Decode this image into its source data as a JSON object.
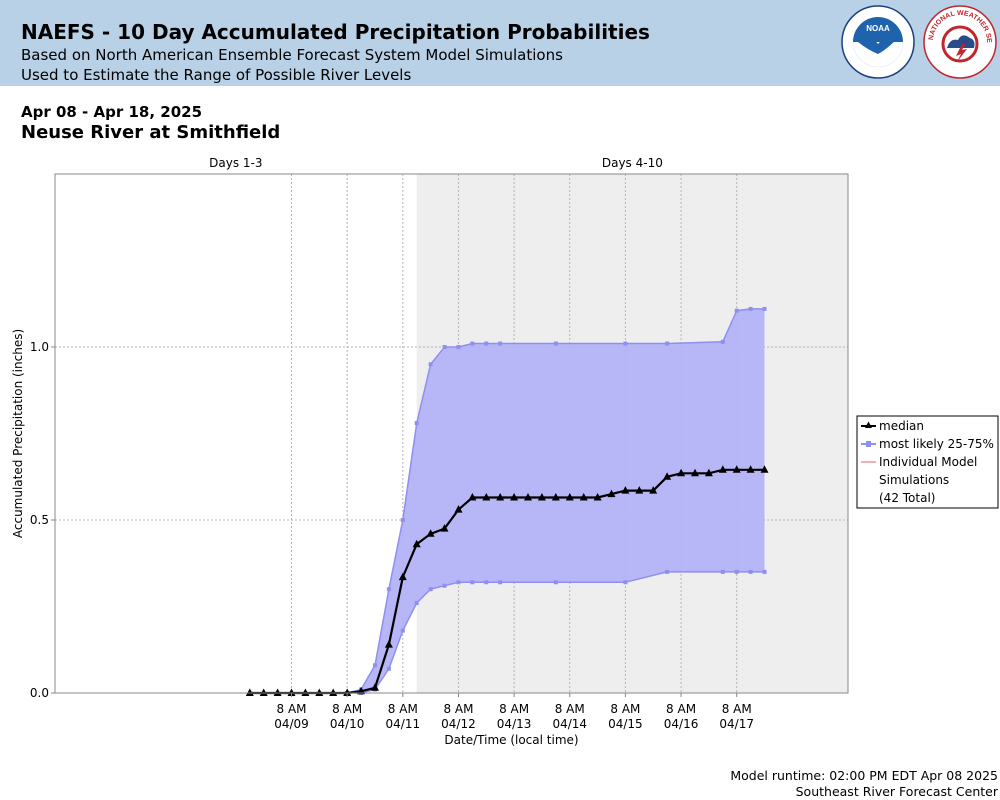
{
  "header": {
    "title": "NAEFS - 10 Day Accumulated Precipitation Probabilities",
    "subtitle1": "Based on North American Ensemble Forecast System Model Simulations",
    "subtitle2": "Used to Estimate the Range of Possible River Levels",
    "logo1_text": "NOAA",
    "logo2_text": "NATIONAL WEATHER SERVICE"
  },
  "date_range": "Apr 08 - Apr 18, 2025",
  "station": "Neuse River at Smithfield",
  "footer": {
    "runtime": "Model runtime: 02:00 PM EDT Apr 08 2025",
    "center": "Southeast River Forecast Center"
  },
  "colors": {
    "header_bg": "#b9d1e6",
    "band_fill": "#b3b3f7",
    "band_line": "#8f8ff0",
    "median": "#000000",
    "shade": "#eeeeee"
  },
  "chart_data": {
    "type": "line",
    "xlabel": "Date/Time (local time)",
    "ylabel": "Accumulated Precipitation (inches)",
    "ylim": [
      0,
      1.5
    ],
    "yticks": [
      0.0,
      0.5,
      1.0
    ],
    "ytick_labels": [
      "0.0",
      "0.5",
      "1.0"
    ],
    "x_hours_range": [
      -21,
      36
    ],
    "xticks": [
      {
        "time": "8 AM",
        "date": "04/09"
      },
      {
        "time": "8 AM",
        "date": "04/10"
      },
      {
        "time": "8 AM",
        "date": "04/11"
      },
      {
        "time": "8 AM",
        "date": "04/12"
      },
      {
        "time": "8 AM",
        "date": "04/13"
      },
      {
        "time": "8 AM",
        "date": "04/14"
      },
      {
        "time": "8 AM",
        "date": "04/15"
      },
      {
        "time": "8 AM",
        "date": "04/16"
      },
      {
        "time": "8 AM",
        "date": "04/17"
      }
    ],
    "periods": [
      {
        "label": "Days 1-3",
        "end_date": "04/11 14:00"
      },
      {
        "label": "Days 4-10"
      }
    ],
    "legend": {
      "position": "right",
      "median_label": "median",
      "band_label": "most likely 25-75%",
      "members_label1": "Individual Model",
      "members_label2": "Simulations",
      "members_count": "(42 Total)"
    },
    "median": {
      "x": [
        "04/08 14:00",
        "04/08 20:00",
        "04/09 02:00",
        "04/09 08:00",
        "04/09 14:00",
        "04/09 20:00",
        "04/10 02:00",
        "04/10 08:00",
        "04/10 14:00",
        "04/10 20:00",
        "04/11 02:00",
        "04/11 08:00",
        "04/11 14:00",
        "04/11 20:00",
        "04/12 02:00",
        "04/12 08:00",
        "04/12 14:00",
        "04/12 20:00",
        "04/13 02:00",
        "04/13 08:00",
        "04/13 14:00",
        "04/13 20:00",
        "04/14 02:00",
        "04/14 08:00",
        "04/14 14:00",
        "04/14 20:00",
        "04/15 02:00",
        "04/15 08:00",
        "04/15 14:00",
        "04/15 20:00",
        "04/16 02:00",
        "04/16 08:00",
        "04/16 14:00",
        "04/16 20:00",
        "04/17 02:00",
        "04/17 08:00",
        "04/17 14:00",
        "04/17 20:00"
      ],
      "values": [
        0,
        0,
        0,
        0,
        0,
        0,
        0,
        0,
        0.005,
        0.015,
        0.14,
        0.335,
        0.43,
        0.46,
        0.475,
        0.53,
        0.565,
        0.565,
        0.565,
        0.565,
        0.565,
        0.565,
        0.565,
        0.565,
        0.565,
        0.565,
        0.575,
        0.585,
        0.585,
        0.585,
        0.625,
        0.635,
        0.635,
        0.635,
        0.645,
        0.645,
        0.645,
        0.645
      ]
    },
    "band": {
      "x": [
        "04/10 08:00",
        "04/10 14:00",
        "04/10 20:00",
        "04/11 02:00",
        "04/11 08:00",
        "04/11 14:00",
        "04/11 20:00",
        "04/12 02:00",
        "04/12 08:00",
        "04/12 14:00",
        "04/12 20:00",
        "04/13 02:00",
        "04/14 02:00",
        "04/15 08:00",
        "04/16 02:00",
        "04/17 02:00",
        "04/17 08:00",
        "04/17 14:00",
        "04/17 20:00"
      ],
      "upper": [
        0.0,
        0.01,
        0.08,
        0.3,
        0.5,
        0.78,
        0.95,
        1.0,
        1.0,
        1.01,
        1.01,
        1.01,
        1.01,
        1.01,
        1.01,
        1.015,
        1.105,
        1.11,
        1.11
      ],
      "lower": [
        0.0,
        0.0,
        0.01,
        0.07,
        0.18,
        0.26,
        0.3,
        0.31,
        0.32,
        0.32,
        0.32,
        0.32,
        0.32,
        0.32,
        0.35,
        0.35,
        0.35,
        0.35,
        0.35
      ]
    }
  }
}
